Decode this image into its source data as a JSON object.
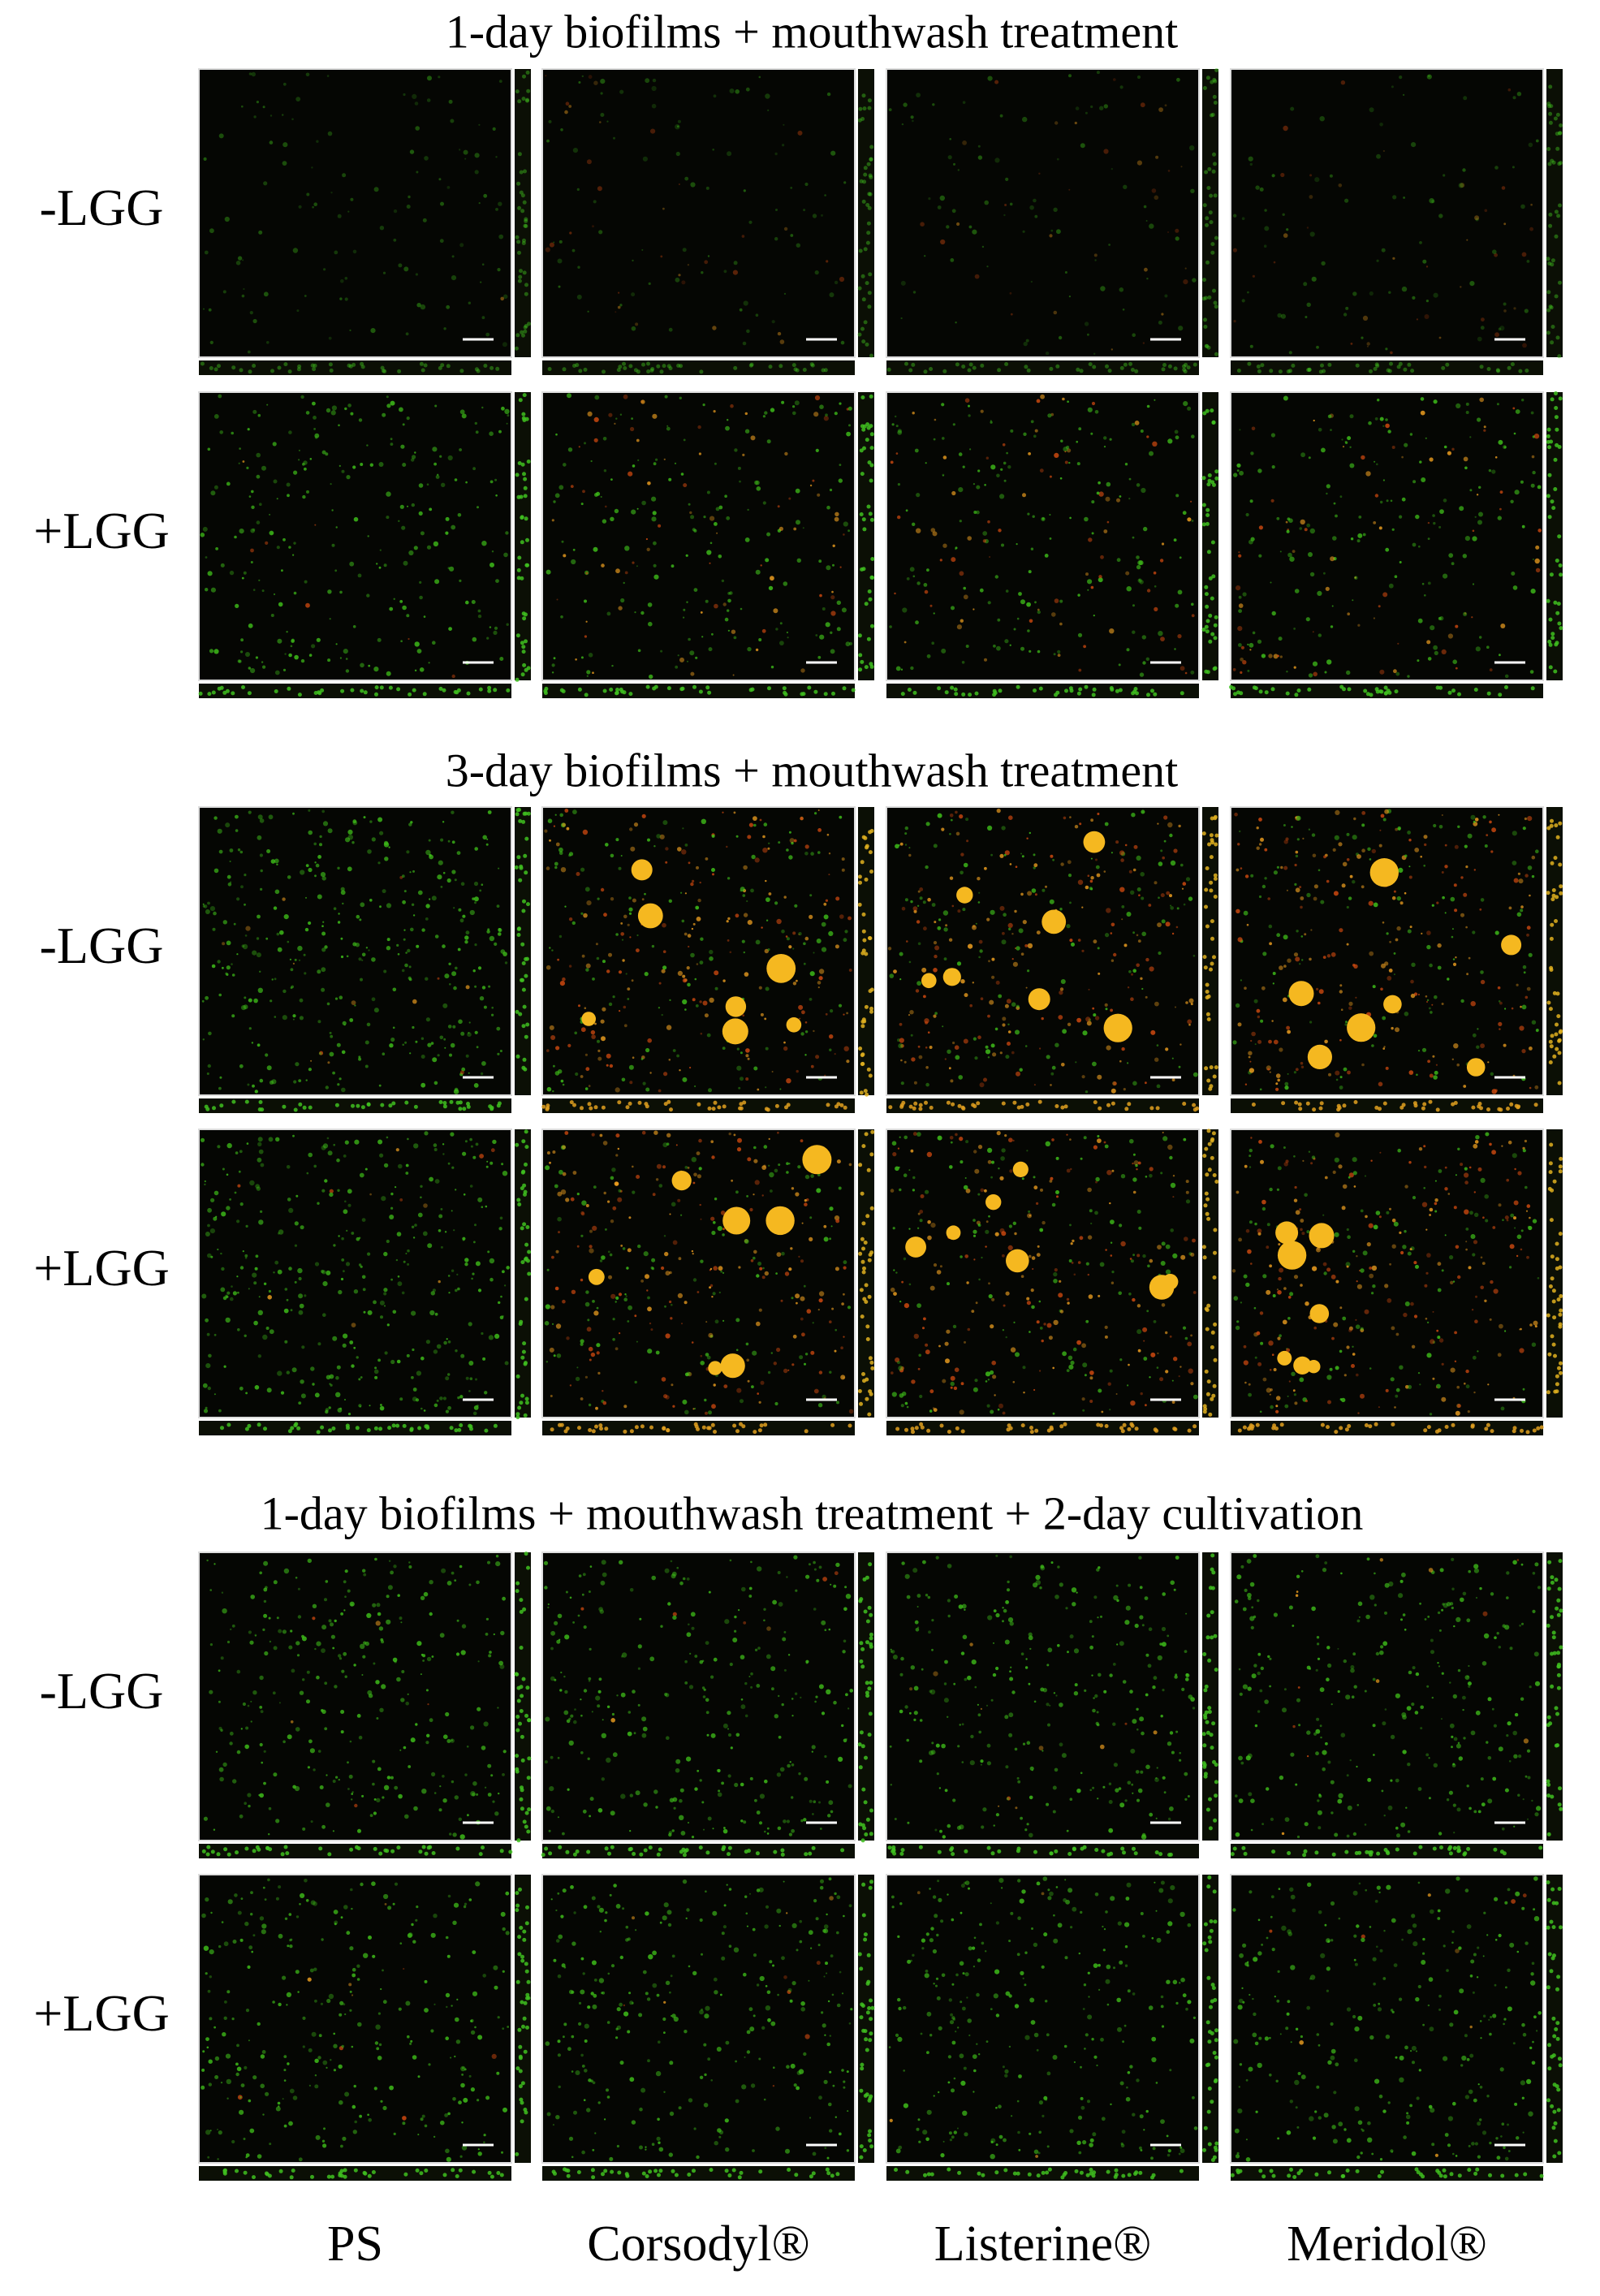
{
  "figure": {
    "sections": [
      {
        "title": "1-day biofilms + mouthwash treatment",
        "rows": [
          "-LGG",
          "+LGG"
        ]
      },
      {
        "title": "3-day biofilms + mouthwash treatment",
        "rows": [
          "-LGG",
          "+LGG"
        ]
      },
      {
        "title": "1-day biofilms + mouthwash treatment + 2-day cultivation",
        "rows": [
          "-LGG",
          "+LGG"
        ]
      }
    ],
    "columns": [
      "PS",
      "Corsodyl®",
      "Listerine®",
      "Meridol®"
    ]
  }
}
